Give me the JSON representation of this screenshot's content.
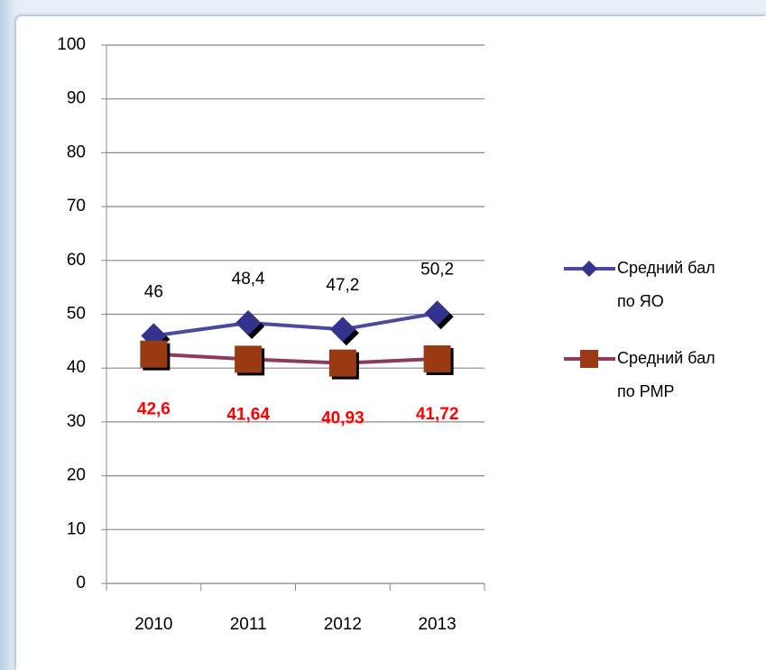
{
  "chart_data": {
    "type": "line",
    "categories": [
      "2010",
      "2011",
      "2012",
      "2013"
    ],
    "series": [
      {
        "name": "Средний бал по ЯО",
        "color": "#4a4aa0",
        "marker_color": "#33338f",
        "marker": "diamond",
        "label_color": "#000000",
        "values": [
          46,
          48.4,
          47.2,
          50.2
        ],
        "value_labels": [
          "46",
          "48,4",
          "47,2",
          "50,2"
        ]
      },
      {
        "name": "Средний бал по РМР",
        "color": "#8e3a5e",
        "marker_color": "#9a3a12",
        "marker": "square",
        "label_color": "#ff0000",
        "values": [
          42.6,
          41.64,
          40.93,
          41.72
        ],
        "value_labels": [
          "42,6",
          "41,64",
          "40,93",
          "41,72"
        ]
      }
    ],
    "ylim": [
      0,
      100
    ],
    "yticks": [
      0,
      10,
      20,
      30,
      40,
      50,
      60,
      70,
      80,
      90,
      100
    ],
    "grid": true,
    "legend": "right"
  }
}
